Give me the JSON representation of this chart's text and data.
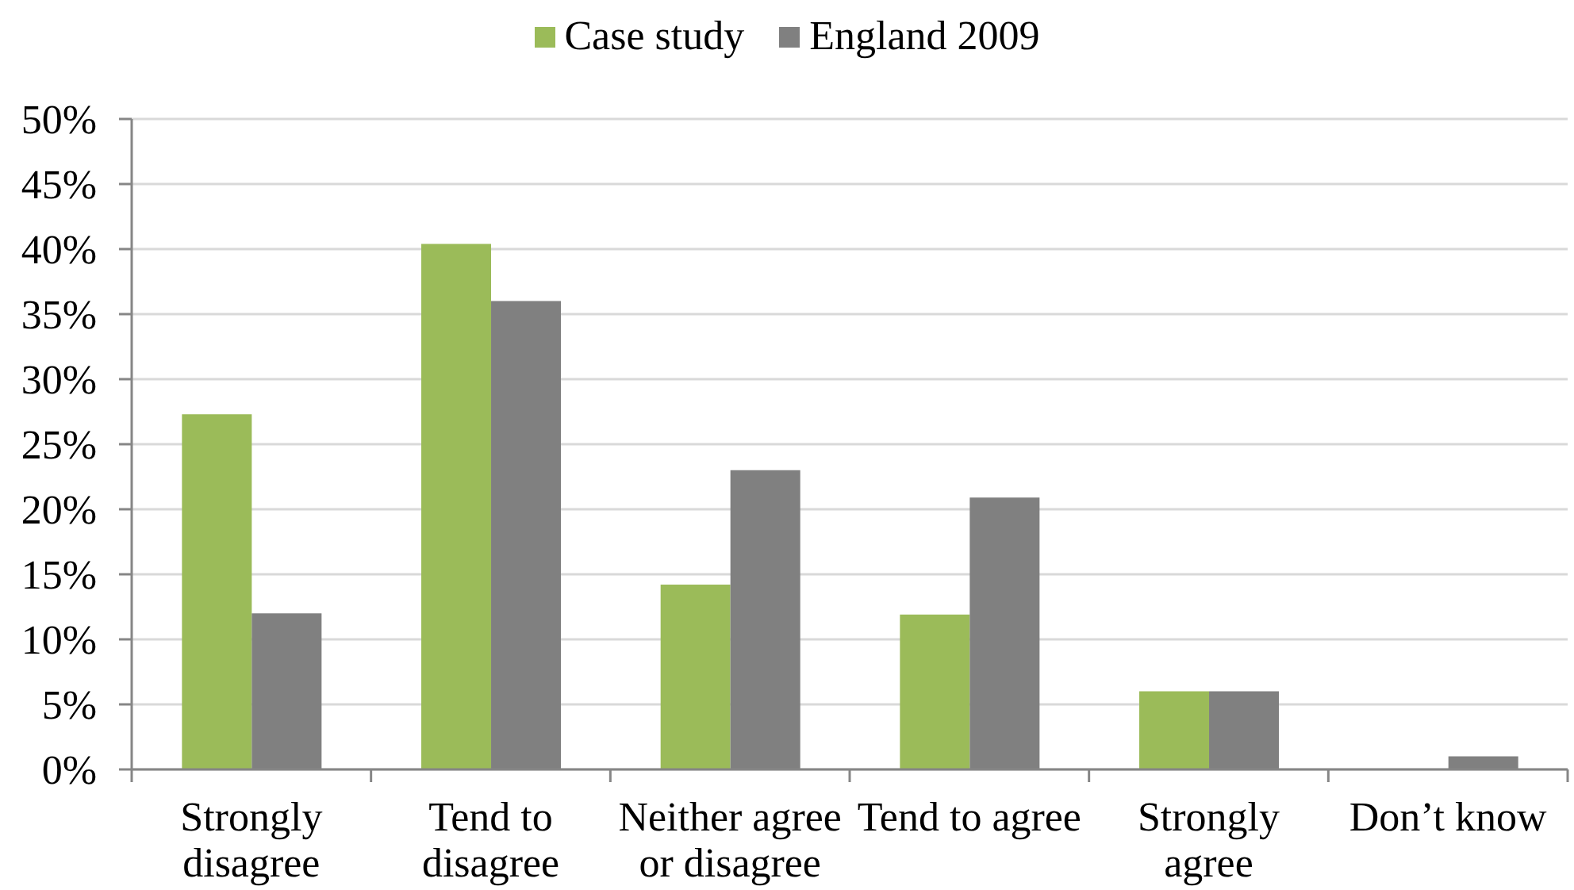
{
  "chart_data": {
    "type": "bar",
    "categories": [
      "Strongly disagree",
      "Tend to disagree",
      "Neither agree or disagree",
      "Tend to agree",
      "Strongly agree",
      "Don’t know"
    ],
    "series": [
      {
        "name": "Case study",
        "color": "#9bbb59",
        "values": [
          27.3,
          40.4,
          14.2,
          11.9,
          6.0,
          0
        ]
      },
      {
        "name": "England 2009",
        "color": "#808080",
        "values": [
          12.0,
          36.0,
          23.0,
          20.9,
          6.0,
          1.0
        ]
      }
    ],
    "ylim": [
      0,
      50
    ],
    "yticks": [
      {
        "value": 0,
        "label": "0%"
      },
      {
        "value": 5,
        "label": "5%"
      },
      {
        "value": 10,
        "label": "10%"
      },
      {
        "value": 15,
        "label": "15%"
      },
      {
        "value": 20,
        "label": "20%"
      },
      {
        "value": 25,
        "label": "25%"
      },
      {
        "value": 30,
        "label": "30%"
      },
      {
        "value": 35,
        "label": "35%"
      },
      {
        "value": 40,
        "label": "40%"
      },
      {
        "value": 45,
        "label": "45%"
      },
      {
        "value": 50,
        "label": "50%"
      }
    ],
    "grid": "y",
    "legend": "top"
  }
}
